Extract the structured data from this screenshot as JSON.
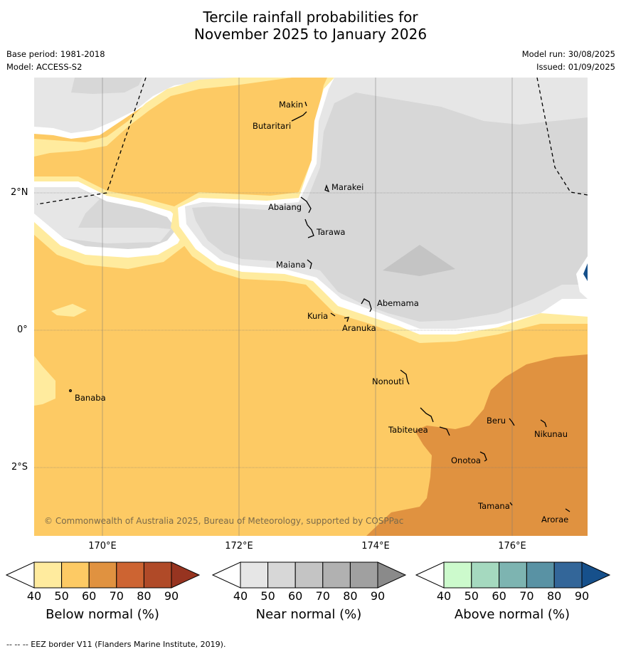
{
  "title_line1": "Tercile rainfall probabilities for",
  "title_line2": "November 2025 to January 2026",
  "base_period": "Base period: 1981-2018",
  "model": "Model: ACCESS-S2",
  "model_run": "Model run: 30/08/2025",
  "issued": "Issued: 01/09/2025",
  "lat_labels": [
    "2°N",
    "0°",
    "2°S"
  ],
  "lon_labels": [
    "170°E",
    "172°E",
    "174°E",
    "176°E"
  ],
  "copyright": "© Commonwealth of Australia 2025, Bureau of Meteorology, supported by COSPPac",
  "places": {
    "makin": "Makin",
    "butaritari": "Butaritari",
    "marakei": "Marakei",
    "abaiang": "Abaiang",
    "tarawa": "Tarawa",
    "maiana": "Maiana",
    "abemama": "Abemama",
    "kuria": "Kuria",
    "aranuka": "Aranuka",
    "nonouti": "Nonouti",
    "banaba": "Banaba",
    "tabiteuea": "Tabiteuea",
    "beru": "Beru",
    "nikunau": "Nikunau",
    "onotoa": "Onotoa",
    "tamana": "Tamana",
    "arorae": "Arorae"
  },
  "colorbars": {
    "below": {
      "title": "Below normal (%)",
      "ticks": [
        "40",
        "50",
        "60",
        "70",
        "80",
        "90"
      ],
      "colors": [
        "#ffffff",
        "#ffeb9e",
        "#fdca64",
        "#e09240",
        "#cd6432",
        "#b04a28",
        "#973420"
      ]
    },
    "near": {
      "title": "Near normal (%)",
      "ticks": [
        "40",
        "50",
        "60",
        "70",
        "80",
        "90"
      ],
      "colors": [
        "#ffffff",
        "#e6e6e6",
        "#d7d7d7",
        "#c4c4c4",
        "#b1b1b1",
        "#a0a0a0",
        "#8a8a8a"
      ]
    },
    "above": {
      "title": "Above normal (%)",
      "ticks": [
        "40",
        "50",
        "60",
        "70",
        "80",
        "90"
      ],
      "colors": [
        "#ffffff",
        "#ccfacc",
        "#a5d9bf",
        "#7db4b1",
        "#5992a4",
        "#336699",
        "#16508b"
      ]
    }
  },
  "footer": "--  --  -- EEZ border V11 (Flanders Marine Institute, 2019)."
}
